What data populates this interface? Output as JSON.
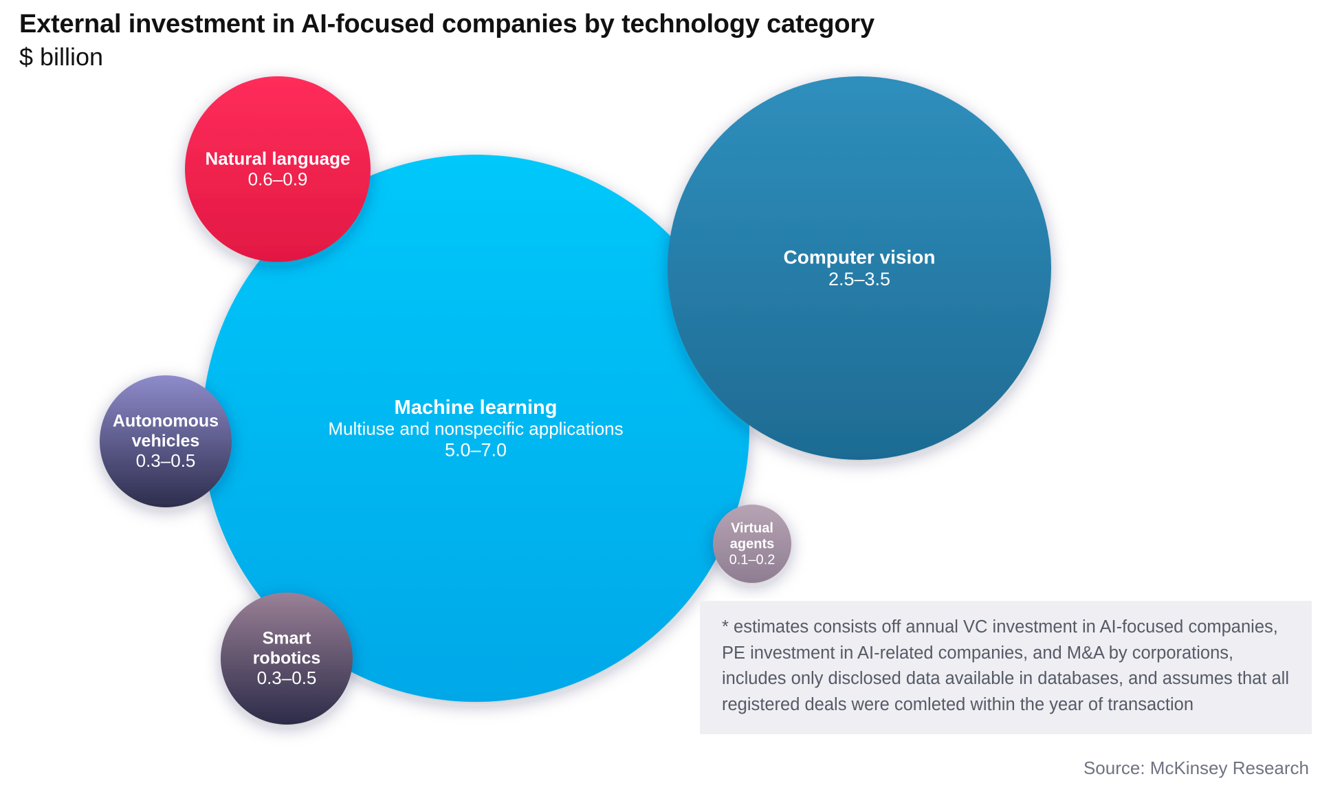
{
  "header": {
    "title": "External investment in AI-focused companies by technology category",
    "subtitle": "$ billion"
  },
  "chart_data": {
    "type": "bubble",
    "title": "External investment in AI-focused companies by technology category",
    "unit": "$ billion",
    "series": [
      {
        "name": "Machine learning",
        "description": "Multiuse and nonspecific applications",
        "label": "5.0–7.0",
        "min": 5.0,
        "max": 7.0,
        "colors": [
          "#00c8fb",
          "#00a8e8"
        ]
      },
      {
        "name": "Computer vision",
        "label": "2.5–3.5",
        "min": 2.5,
        "max": 3.5,
        "colors": [
          "#2f8fbd",
          "#1e6b93"
        ]
      },
      {
        "name": "Natural language",
        "label": "0.6–0.9",
        "min": 0.6,
        "max": 0.9,
        "colors": [
          "#ff2d5a",
          "#e21843"
        ]
      },
      {
        "name": "Autonomous vehicles",
        "label": "0.3–0.5",
        "min": 0.3,
        "max": 0.5,
        "colors": [
          "#8e8bcb",
          "#2d2d4d"
        ]
      },
      {
        "name": "Smart robotics",
        "label": "0.3–0.5",
        "min": 0.3,
        "max": 0.5,
        "colors": [
          "#9a8096",
          "#2c2b48"
        ]
      },
      {
        "name": "Virtual agents",
        "label": "0.1–0.2",
        "min": 0.1,
        "max": 0.2,
        "colors": [
          "#b6a3b3",
          "#8f7d92"
        ]
      }
    ]
  },
  "footnote": "* estimates consists off annual VC investment in AI-focused companies, PE investment in AI-related companies, and M&A by corporations, includes only disclosed data available in databases, and assumes that all registered deals were comleted within the year of transaction",
  "source": "Source: McKinsey Research"
}
